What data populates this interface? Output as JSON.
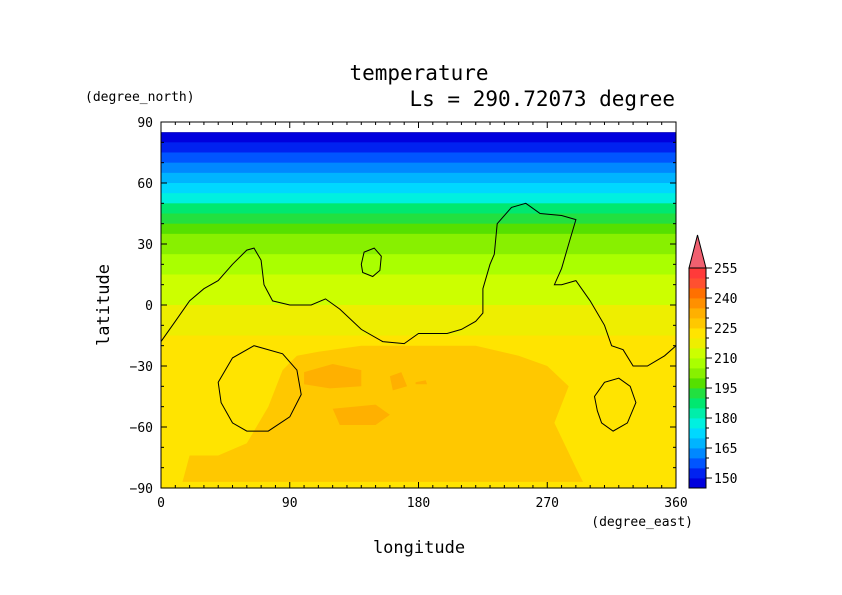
{
  "chart_data": {
    "type": "heatmap",
    "title": "temperature",
    "subtitle": "Ls = 290.72073 degree",
    "xlabel": "longitude",
    "ylabel": "latitude",
    "x_unit": "(degree_east)",
    "y_unit": "(degree_north)",
    "xlim": [
      0,
      360
    ],
    "ylim": [
      -90,
      90
    ],
    "data_lat_range": [
      -87,
      85
    ],
    "x_ticks": [
      0,
      90,
      180,
      270,
      360
    ],
    "y_ticks": [
      90,
      60,
      30,
      0,
      -30,
      -60,
      -90
    ],
    "x_tick_labels": [
      "0",
      "90",
      "180",
      "270",
      "360"
    ],
    "y_tick_labels": [
      "90",
      "60",
      "30",
      "0",
      "−30",
      "−60",
      "−90"
    ],
    "colorbar": {
      "levels": [
        145,
        150,
        155,
        160,
        165,
        170,
        175,
        180,
        185,
        190,
        195,
        200,
        205,
        210,
        215,
        220,
        225,
        230,
        235,
        240,
        245,
        250,
        255,
        260
      ],
      "colors": [
        "#0000dd",
        "#0022f0",
        "#0055ff",
        "#0088ff",
        "#00b4ff",
        "#00d8ff",
        "#00f0e0",
        "#00eeaa",
        "#00e870",
        "#22e040",
        "#55e000",
        "#88f000",
        "#aaff00",
        "#ccff00",
        "#eeee00",
        "#ffe400",
        "#ffc800",
        "#ffb000",
        "#ff9000",
        "#ff7000",
        "#ff5030",
        "#ff3a3a",
        "#f06070"
      ],
      "tick_labels": [
        "150",
        "165",
        "180",
        "195",
        "210",
        "225",
        "240",
        "255"
      ],
      "extend": "max"
    },
    "temperature_profile": [
      {
        "lat": 85,
        "value": 147
      },
      {
        "lat": 80,
        "value": 150
      },
      {
        "lat": 75,
        "value": 155
      },
      {
        "lat": 70,
        "value": 160
      },
      {
        "lat": 65,
        "value": 166
      },
      {
        "lat": 60,
        "value": 172
      },
      {
        "lat": 55,
        "value": 178
      },
      {
        "lat": 50,
        "value": 185
      },
      {
        "lat": 45,
        "value": 191
      },
      {
        "lat": 40,
        "value": 196
      },
      {
        "lat": 35,
        "value": 200
      },
      {
        "lat": 30,
        "value": 204
      },
      {
        "lat": 25,
        "value": 207
      },
      {
        "lat": 15,
        "value": 211
      },
      {
        "lat": 0,
        "value": 216
      },
      {
        "lat": -10,
        "value": 219
      },
      {
        "lat": -15,
        "value": 222
      },
      {
        "lat": -25,
        "value": 224
      },
      {
        "lat": -90,
        "value": 224
      }
    ],
    "warm_regions": [
      {
        "name": "southern-warm-region",
        "value": 227,
        "outline": [
          [
            15,
            -87
          ],
          [
            20,
            -74
          ],
          [
            40,
            -74
          ],
          [
            60,
            -68
          ],
          [
            75,
            -50
          ],
          [
            85,
            -32
          ],
          [
            95,
            -25
          ],
          [
            110,
            -23
          ],
          [
            140,
            -20
          ],
          [
            190,
            -20
          ],
          [
            220,
            -20
          ],
          [
            250,
            -25
          ],
          [
            270,
            -30
          ],
          [
            285,
            -40
          ],
          [
            275,
            -58
          ],
          [
            290,
            -80
          ],
          [
            295,
            -87
          ]
        ]
      },
      {
        "name": "warm-cell-1",
        "value": 232,
        "outline": [
          [
            100,
            -33
          ],
          [
            120,
            -29
          ],
          [
            140,
            -32
          ],
          [
            140,
            -40
          ],
          [
            118,
            -41
          ],
          [
            100,
            -39
          ]
        ]
      },
      {
        "name": "warm-cell-2",
        "value": 232,
        "outline": [
          [
            160,
            -35
          ],
          [
            168,
            -33
          ],
          [
            172,
            -40
          ],
          [
            162,
            -42
          ]
        ]
      },
      {
        "name": "warm-cell-3",
        "value": 232,
        "outline": [
          [
            120,
            -51
          ],
          [
            150,
            -49
          ],
          [
            160,
            -54
          ],
          [
            150,
            -59
          ],
          [
            125,
            -59
          ]
        ]
      },
      {
        "name": "warm-cell-4",
        "value": 232,
        "outline": [
          [
            178,
            -38
          ],
          [
            185,
            -37
          ],
          [
            186,
            -39
          ],
          [
            178,
            -39
          ]
        ]
      }
    ],
    "contours": [
      {
        "name": "topography-contour-main",
        "points": [
          [
            0,
            -18
          ],
          [
            10,
            -8
          ],
          [
            20,
            2
          ],
          [
            30,
            8
          ],
          [
            40,
            12
          ],
          [
            50,
            20
          ],
          [
            60,
            27
          ],
          [
            65,
            28
          ],
          [
            70,
            22
          ],
          [
            72,
            10
          ],
          [
            78,
            2
          ],
          [
            90,
            0
          ],
          [
            105,
            0
          ],
          [
            115,
            3
          ],
          [
            125,
            -2
          ],
          [
            140,
            -12
          ],
          [
            155,
            -18
          ],
          [
            170,
            -19
          ],
          [
            180,
            -14
          ],
          [
            190,
            -14
          ],
          [
            200,
            -14
          ],
          [
            210,
            -12
          ],
          [
            220,
            -8
          ],
          [
            225,
            -4
          ],
          [
            225,
            8
          ],
          [
            230,
            20
          ],
          [
            233,
            25
          ],
          [
            235,
            40
          ],
          [
            245,
            48
          ],
          [
            255,
            50
          ],
          [
            265,
            45
          ],
          [
            280,
            44
          ],
          [
            290,
            42
          ],
          [
            285,
            30
          ],
          [
            280,
            18
          ],
          [
            275,
            10
          ],
          [
            280,
            10
          ],
          [
            290,
            12
          ],
          [
            300,
            2
          ],
          [
            310,
            -10
          ],
          [
            315,
            -20
          ],
          [
            323,
            -22
          ],
          [
            330,
            -30
          ],
          [
            340,
            -30
          ],
          [
            352,
            -25
          ],
          [
            360,
            -20
          ]
        ]
      },
      {
        "name": "topography-contour-hill",
        "closed": true,
        "points": [
          [
            140,
            20
          ],
          [
            142,
            26
          ],
          [
            149,
            28
          ],
          [
            154,
            24
          ],
          [
            153,
            17
          ],
          [
            148,
            14
          ],
          [
            141,
            16
          ]
        ]
      },
      {
        "name": "topography-contour-west-crater",
        "closed": true,
        "points": [
          [
            42,
            -48
          ],
          [
            40,
            -38
          ],
          [
            50,
            -26
          ],
          [
            65,
            -20
          ],
          [
            85,
            -24
          ],
          [
            95,
            -32
          ],
          [
            98,
            -44
          ],
          [
            90,
            -55
          ],
          [
            75,
            -62
          ],
          [
            60,
            -62
          ],
          [
            50,
            -58
          ]
        ]
      },
      {
        "name": "topography-contour-east-crater",
        "closed": true,
        "points": [
          [
            305,
            -52
          ],
          [
            303,
            -45
          ],
          [
            310,
            -38
          ],
          [
            320,
            -36
          ],
          [
            328,
            -40
          ],
          [
            332,
            -48
          ],
          [
            326,
            -58
          ],
          [
            316,
            -62
          ],
          [
            308,
            -58
          ]
        ]
      }
    ]
  }
}
